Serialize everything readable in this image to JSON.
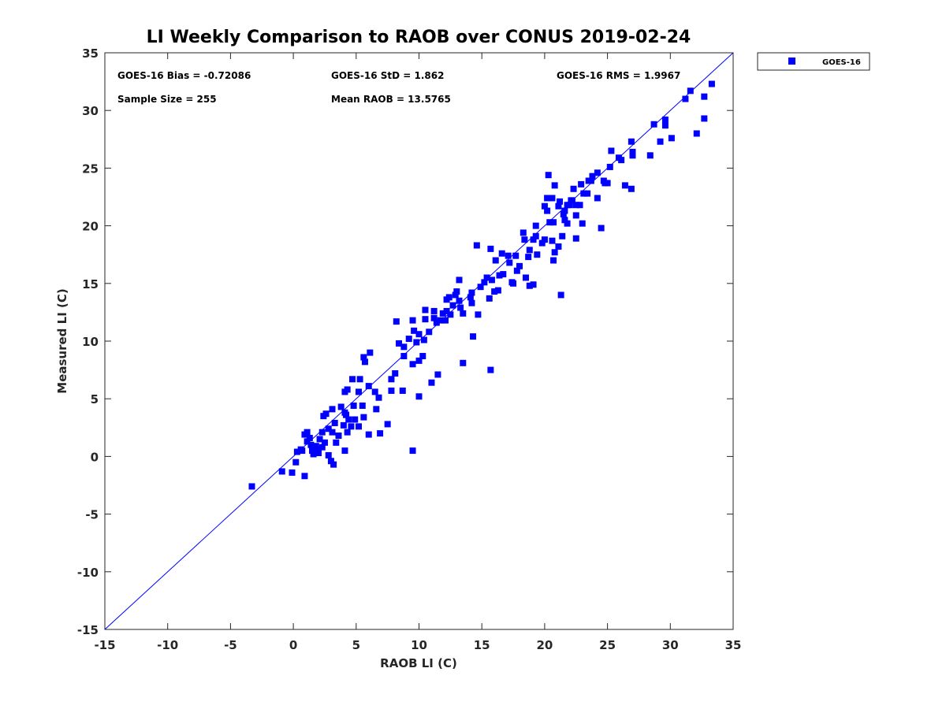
{
  "chart_data": {
    "type": "scatter",
    "title": "LI Weekly Comparison to RAOB over CONUS 2019-02-24",
    "xlabel": "RAOB LI (C)",
    "ylabel": "Measured LI (C)",
    "xlim": [
      -15,
      35
    ],
    "ylim": [
      -15,
      35
    ],
    "xticks": [
      -15,
      -10,
      -5,
      0,
      5,
      10,
      15,
      20,
      25,
      30,
      35
    ],
    "yticks": [
      -15,
      -10,
      -5,
      0,
      5,
      10,
      15,
      20,
      25,
      30,
      35
    ],
    "grid": false,
    "legend": {
      "placement": "outside-top-right",
      "entries": [
        "GOES-16"
      ]
    },
    "stats": {
      "bias": "GOES-16 Bias = -0.72086",
      "std": "GOES-16 StD = 1.862",
      "rms": "GOES-16 RMS = 1.9967",
      "sample": "Sample Size = 255",
      "mean": "Mean RAOB = 13.5765"
    },
    "reference_line": {
      "type": "one-to-one",
      "color": "#0000ff"
    },
    "series": [
      {
        "name": "GOES-16",
        "color": "#0000ff",
        "marker": "square",
        "points": [
          [
            -3.3,
            -2.6
          ],
          [
            -0.9,
            -1.3
          ],
          [
            -0.1,
            -1.4
          ],
          [
            0.9,
            -1.7
          ],
          [
            0.2,
            -0.5
          ],
          [
            0.3,
            0.4
          ],
          [
            0.6,
            0.6
          ],
          [
            0.9,
            1.9
          ],
          [
            1.1,
            2.1
          ],
          [
            1.1,
            1.3
          ],
          [
            1.4,
            1.0
          ],
          [
            1.6,
            0.2
          ],
          [
            1.9,
            0.6
          ],
          [
            2.1,
            1.5
          ],
          [
            2.3,
            2.1
          ],
          [
            2.4,
            3.5
          ],
          [
            2.6,
            3.7
          ],
          [
            2.8,
            2.4
          ],
          [
            2.3,
            0.8
          ],
          [
            2.8,
            0.1
          ],
          [
            3.0,
            -0.4
          ],
          [
            3.2,
            -0.7
          ],
          [
            3.1,
            2.1
          ],
          [
            3.3,
            2.9
          ],
          [
            3.1,
            4.1
          ],
          [
            3.8,
            4.3
          ],
          [
            4.1,
            3.8
          ],
          [
            4.0,
            2.7
          ],
          [
            4.1,
            0.5
          ],
          [
            4.3,
            2.1
          ],
          [
            4.1,
            5.6
          ],
          [
            4.3,
            5.8
          ],
          [
            4.7,
            6.7
          ],
          [
            4.8,
            4.4
          ],
          [
            4.9,
            3.2
          ],
          [
            5.2,
            2.6
          ],
          [
            5.2,
            5.6
          ],
          [
            5.3,
            6.7
          ],
          [
            5.6,
            8.6
          ],
          [
            5.7,
            8.2
          ],
          [
            5.5,
            4.4
          ],
          [
            5.6,
            3.4
          ],
          [
            6.0,
            1.9
          ],
          [
            6.1,
            9.0
          ],
          [
            6.0,
            6.1
          ],
          [
            6.5,
            5.6
          ],
          [
            6.6,
            4.1
          ],
          [
            6.8,
            5.1
          ],
          [
            6.9,
            2.0
          ],
          [
            7.5,
            2.8
          ],
          [
            7.8,
            6.7
          ],
          [
            7.8,
            5.7
          ],
          [
            8.1,
            7.2
          ],
          [
            8.2,
            11.7
          ],
          [
            8.4,
            9.8
          ],
          [
            8.8,
            9.5
          ],
          [
            8.7,
            5.7
          ],
          [
            8.8,
            8.7
          ],
          [
            9.2,
            10.2
          ],
          [
            9.5,
            0.5
          ],
          [
            9.5,
            11.8
          ],
          [
            9.6,
            10.9
          ],
          [
            9.5,
            8.0
          ],
          [
            9.8,
            9.9
          ],
          [
            10.0,
            10.6
          ],
          [
            10.0,
            8.3
          ],
          [
            10.0,
            5.2
          ],
          [
            10.3,
            8.7
          ],
          [
            10.5,
            12.7
          ],
          [
            10.5,
            11.9
          ],
          [
            10.4,
            10.1
          ],
          [
            10.8,
            10.8
          ],
          [
            11.0,
            6.4
          ],
          [
            11.2,
            12.6
          ],
          [
            11.2,
            12.0
          ],
          [
            11.4,
            11.6
          ],
          [
            11.5,
            7.1
          ],
          [
            11.7,
            11.8
          ],
          [
            11.9,
            12.4
          ],
          [
            12.1,
            11.8
          ],
          [
            12.2,
            13.6
          ],
          [
            12.4,
            13.8
          ],
          [
            12.2,
            12.6
          ],
          [
            12.5,
            12.3
          ],
          [
            12.7,
            13.1
          ],
          [
            12.9,
            14.0
          ],
          [
            13.0,
            14.3
          ],
          [
            13.2,
            15.3
          ],
          [
            13.2,
            13.5
          ],
          [
            13.3,
            12.9
          ],
          [
            13.5,
            12.4
          ],
          [
            13.5,
            8.1
          ],
          [
            14.1,
            13.8
          ],
          [
            14.2,
            13.3
          ],
          [
            14.2,
            14.2
          ],
          [
            14.3,
            10.4
          ],
          [
            14.6,
            18.3
          ],
          [
            14.7,
            12.3
          ],
          [
            14.9,
            14.7
          ],
          [
            15.2,
            15.1
          ],
          [
            15.4,
            15.5
          ],
          [
            15.6,
            13.7
          ],
          [
            15.7,
            18.0
          ],
          [
            15.8,
            15.3
          ],
          [
            15.7,
            7.5
          ],
          [
            16.0,
            14.3
          ],
          [
            16.1,
            17.0
          ],
          [
            16.3,
            14.4
          ],
          [
            16.4,
            15.7
          ],
          [
            16.6,
            17.6
          ],
          [
            16.7,
            15.8
          ],
          [
            17.1,
            17.4
          ],
          [
            17.2,
            16.8
          ],
          [
            17.4,
            15.1
          ],
          [
            17.5,
            15.0
          ],
          [
            17.7,
            17.4
          ],
          [
            17.8,
            16.1
          ],
          [
            18.0,
            16.5
          ],
          [
            18.3,
            19.4
          ],
          [
            18.4,
            18.8
          ],
          [
            18.5,
            15.5
          ],
          [
            18.7,
            17.3
          ],
          [
            18.8,
            14.8
          ],
          [
            18.8,
            17.9
          ],
          [
            19.1,
            14.9
          ],
          [
            19.1,
            18.8
          ],
          [
            19.3,
            20.0
          ],
          [
            19.3,
            19.1
          ],
          [
            19.4,
            17.5
          ],
          [
            19.8,
            18.5
          ],
          [
            20.0,
            18.8
          ],
          [
            20.0,
            21.7
          ],
          [
            20.2,
            21.3
          ],
          [
            20.2,
            22.4
          ],
          [
            20.3,
            24.4
          ],
          [
            20.4,
            20.3
          ],
          [
            20.6,
            22.4
          ],
          [
            20.6,
            18.7
          ],
          [
            20.7,
            20.3
          ],
          [
            20.7,
            17.0
          ],
          [
            20.8,
            23.5
          ],
          [
            20.8,
            17.7
          ],
          [
            21.1,
            21.7
          ],
          [
            21.1,
            18.2
          ],
          [
            21.2,
            22.1
          ],
          [
            21.3,
            14.0
          ],
          [
            21.4,
            19.1
          ],
          [
            21.5,
            21.0
          ],
          [
            21.6,
            21.3
          ],
          [
            21.6,
            20.5
          ],
          [
            21.8,
            21.8
          ],
          [
            21.8,
            20.2
          ],
          [
            22.0,
            21.8
          ],
          [
            22.1,
            22.2
          ],
          [
            22.2,
            22.2
          ],
          [
            22.3,
            23.2
          ],
          [
            22.5,
            20.9
          ],
          [
            22.5,
            21.8
          ],
          [
            22.5,
            18.9
          ],
          [
            22.8,
            21.8
          ],
          [
            22.9,
            23.6
          ],
          [
            23.0,
            20.2
          ],
          [
            23.1,
            22.8
          ],
          [
            23.4,
            22.8
          ],
          [
            23.5,
            23.9
          ],
          [
            23.7,
            23.9
          ],
          [
            23.8,
            24.3
          ],
          [
            24.2,
            22.4
          ],
          [
            24.2,
            24.6
          ],
          [
            24.5,
            19.8
          ],
          [
            24.7,
            23.9
          ],
          [
            24.8,
            23.7
          ],
          [
            25.0,
            23.7
          ],
          [
            25.2,
            25.1
          ],
          [
            25.3,
            26.5
          ],
          [
            25.9,
            25.9
          ],
          [
            26.1,
            25.7
          ],
          [
            26.4,
            23.5
          ],
          [
            26.9,
            27.3
          ],
          [
            26.9,
            23.2
          ],
          [
            27.0,
            26.4
          ],
          [
            27.0,
            26.1
          ],
          [
            28.4,
            26.1
          ],
          [
            28.7,
            28.8
          ],
          [
            29.2,
            27.3
          ],
          [
            29.6,
            29.2
          ],
          [
            29.6,
            28.7
          ],
          [
            30.1,
            27.6
          ],
          [
            31.2,
            31.0
          ],
          [
            31.6,
            31.7
          ],
          [
            32.1,
            28.0
          ],
          [
            32.7,
            31.2
          ],
          [
            32.7,
            29.3
          ],
          [
            33.3,
            32.3
          ],
          [
            1.3,
            1.6
          ],
          [
            1.8,
            0.9
          ],
          [
            2.0,
            0.3
          ],
          [
            3.4,
            1.2
          ],
          [
            3.6,
            1.8
          ],
          [
            4.4,
            3.2
          ],
          [
            4.6,
            2.6
          ],
          [
            4.2,
            3.6
          ],
          [
            2.5,
            1.2
          ],
          [
            1.5,
            0.5
          ],
          [
            0.7,
            0.5
          ]
        ]
      }
    ]
  }
}
